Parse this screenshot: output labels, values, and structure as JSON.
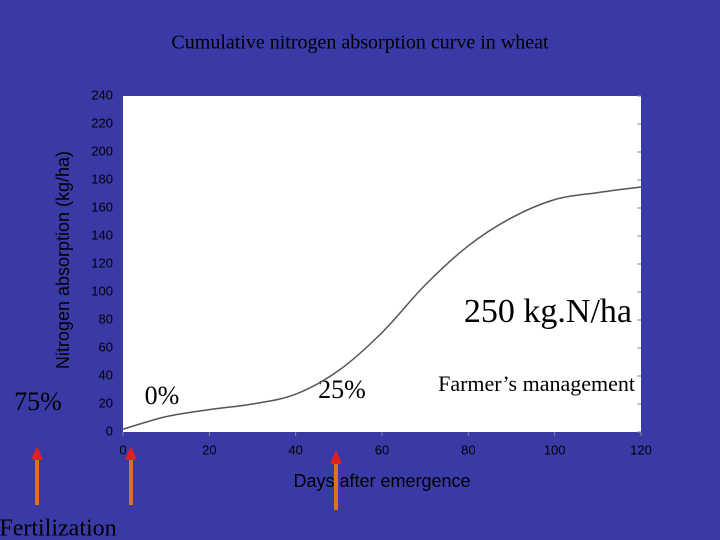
{
  "chart_data": {
    "type": "line",
    "title": "Cumulative nitrogen absorption curve in wheat",
    "x_label": "Days after emergence",
    "y_label": "Nitrogen absorption (kg/ha)",
    "x": [
      0,
      10,
      20,
      30,
      40,
      50,
      60,
      70,
      80,
      90,
      100,
      110,
      120
    ],
    "values": [
      2,
      11,
      16,
      20,
      27,
      44,
      71,
      105,
      133,
      153,
      166,
      171,
      175
    ],
    "color": "#555555",
    "xlim": [
      0,
      120
    ],
    "xticks": [
      0,
      20,
      40,
      60,
      80,
      100,
      120
    ],
    "ylim": [
      0,
      240
    ],
    "yticks": [
      0,
      20,
      40,
      60,
      80,
      100,
      120,
      140,
      160,
      180,
      200,
      220,
      240
    ],
    "grid": false,
    "annotations": [
      "250 kg.N/ha",
      "75%",
      "0%",
      "25%",
      "Farmer’s management",
      "Fertilization"
    ]
  }
}
